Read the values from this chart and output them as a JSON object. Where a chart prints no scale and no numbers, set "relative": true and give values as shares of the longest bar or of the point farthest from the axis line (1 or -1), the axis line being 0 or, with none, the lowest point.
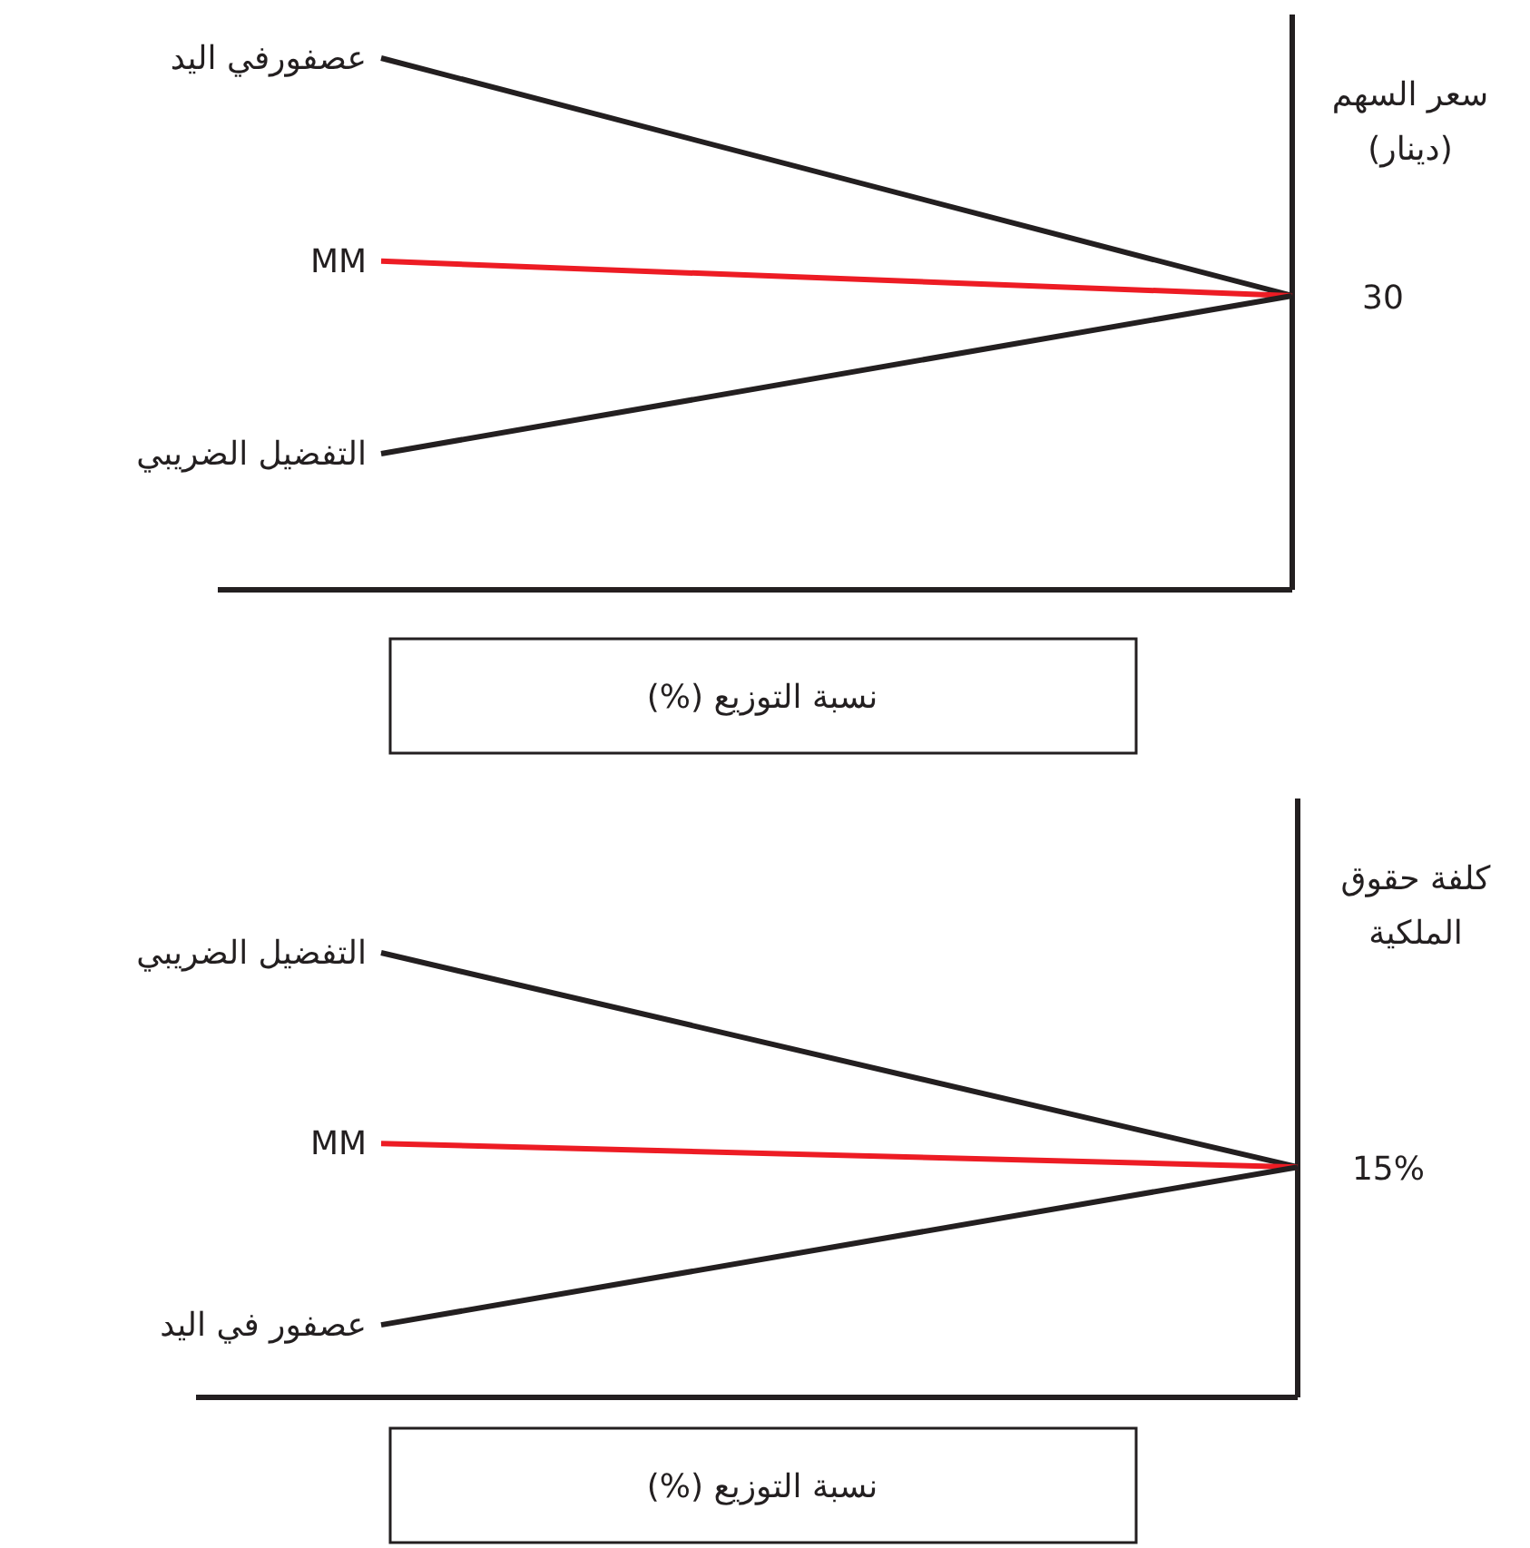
{
  "chart_data": [
    {
      "type": "line",
      "relative": true,
      "categories": [
        null,
        null
      ],
      "ylabel": "سعر السهم (دينار)",
      "xlabel": "نسبة التوزيع (%)",
      "annotations": [
        "30"
      ],
      "marker": "none",
      "line_style": "solid",
      "grid": false,
      "legend": false,
      "series": [
        {
          "name": "عصفورفي اليد",
          "color": "#231f20",
          "values": [
            1,
            0.553
          ]
        },
        {
          "name": "MM",
          "color": "#ed1c24",
          "values": [
            0.618,
            0.553
          ]
        },
        {
          "name": "التفضيل الضريبي",
          "color": "#231f20",
          "values": [
            0.256,
            0.553
          ]
        }
      ]
    },
    {
      "type": "line",
      "relative": true,
      "categories": [
        null,
        null
      ],
      "ylabel": "كلفة حقوق الملكية",
      "xlabel": "نسبة التوزيع (%)",
      "annotations": [
        "15%"
      ],
      "marker": "none",
      "line_style": "solid",
      "grid": false,
      "legend": false,
      "series": [
        {
          "name": "التفضيل الضريبي",
          "color": "#231f20",
          "values": [
            1,
            0.518
          ]
        },
        {
          "name": "MM",
          "color": "#ed1c24",
          "values": [
            0.571,
            0.518
          ]
        },
        {
          "name": "عصفور في اليد",
          "color": "#231f20",
          "values": [
            0.163,
            0.518
          ]
        }
      ]
    }
  ]
}
